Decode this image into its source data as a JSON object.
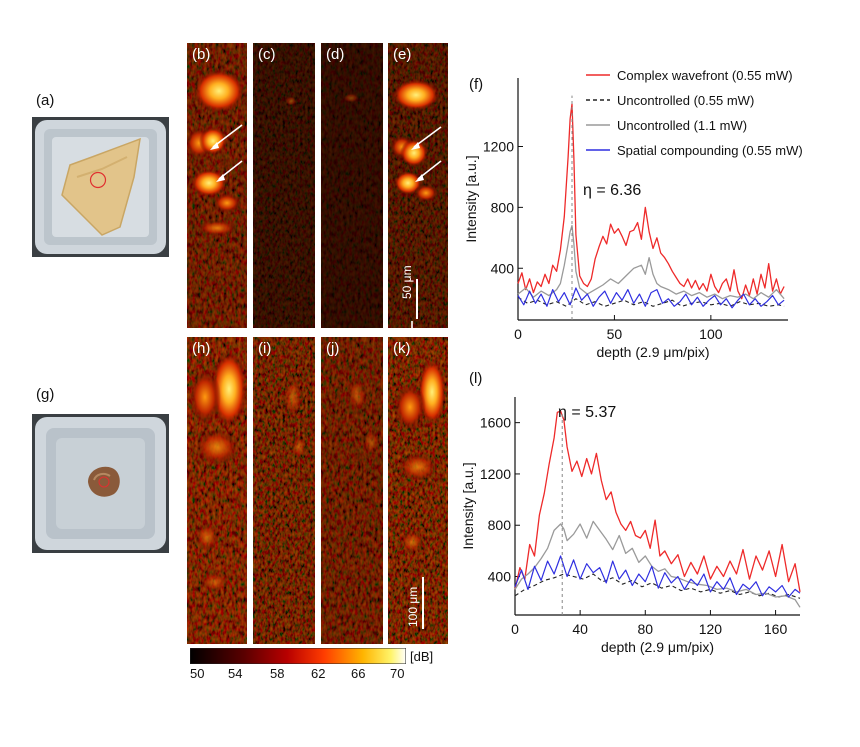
{
  "panel_labels": {
    "a": "(a)",
    "b": "(b)",
    "c": "(c)",
    "d": "(d)",
    "e": "(e)",
    "f": "(f)",
    "g": "(g)",
    "h": "(h)",
    "i": "(i)",
    "j": "(j)",
    "k": "(k)",
    "l": "(l)"
  },
  "scalebars": {
    "top": "50 μm",
    "bottom": "100 μm"
  },
  "colorbar": {
    "ticks": [
      "50",
      "54",
      "58",
      "62",
      "66",
      "70"
    ],
    "unit": "[dB]"
  },
  "colors": {
    "complex": "#ee2a2a",
    "uncontrolled_low": "#222222",
    "uncontrolled_high": "#9a9a9a",
    "compounding": "#2f2fe0"
  },
  "chart_data": [
    {
      "id": "f",
      "type": "line",
      "xlabel": "depth (2.9 μm/pix)",
      "ylabel": "Intensity [a.u.]",
      "xlim": [
        0,
        140
      ],
      "ylim": [
        60,
        1650
      ],
      "xticks": [
        "0",
        "50",
        "100"
      ],
      "xtick_values": [
        0,
        50,
        100
      ],
      "yticks": [
        "400",
        "800",
        "1200"
      ],
      "ytick_values": [
        400,
        800,
        1200
      ],
      "annotation": "η = 6.36",
      "marker_x": 28,
      "legend": [
        "Complex wavefront (0.55 mW)",
        "Uncontrolled (0.55 mW)",
        "Uncontrolled (1.1 mW)",
        "Spatial compounding (0.55 mW)"
      ],
      "series": [
        {
          "name": "Complex wavefront (0.55 mW)",
          "style": "red",
          "x": [
            0,
            2,
            4,
            6,
            8,
            10,
            12,
            14,
            16,
            18,
            20,
            22,
            24,
            26,
            27,
            28,
            29,
            30,
            32,
            34,
            36,
            38,
            40,
            42,
            44,
            46,
            48,
            50,
            52,
            54,
            56,
            58,
            60,
            62,
            64,
            66,
            68,
            70,
            72,
            74,
            76,
            78,
            80,
            82,
            84,
            86,
            88,
            90,
            92,
            94,
            96,
            98,
            100,
            102,
            104,
            106,
            108,
            110,
            112,
            114,
            116,
            118,
            120,
            122,
            124,
            126,
            128,
            130,
            132,
            134,
            136,
            138
          ],
          "y": [
            300,
            370,
            260,
            330,
            240,
            310,
            280,
            360,
            300,
            420,
            380,
            520,
            740,
            1130,
            1380,
            1480,
            1120,
            620,
            350,
            300,
            280,
            330,
            460,
            540,
            610,
            560,
            690,
            630,
            660,
            610,
            550,
            640,
            650,
            700,
            590,
            800,
            640,
            530,
            600,
            500,
            470,
            430,
            380,
            340,
            300,
            280,
            330,
            270,
            320,
            260,
            300,
            250,
            360,
            280,
            240,
            300,
            330,
            250,
            390,
            250,
            200,
            290,
            220,
            330,
            230,
            360,
            270,
            430,
            250,
            330,
            230,
            280
          ]
        },
        {
          "name": "Uncontrolled (0.55 mW)",
          "style": "black-dashed",
          "x": [
            0,
            5,
            10,
            15,
            20,
            25,
            30,
            35,
            40,
            45,
            50,
            55,
            60,
            65,
            70,
            75,
            80,
            85,
            90,
            95,
            100,
            105,
            110,
            115,
            120,
            125,
            130,
            135,
            138
          ],
          "y": [
            210,
            170,
            190,
            160,
            180,
            150,
            200,
            160,
            180,
            150,
            170,
            190,
            160,
            180,
            150,
            170,
            190,
            150,
            170,
            180,
            160,
            170,
            150,
            180,
            160,
            170,
            150,
            160,
            150
          ]
        },
        {
          "name": "Uncontrolled (1.1 mW)",
          "style": "gray",
          "x": [
            0,
            4,
            8,
            12,
            16,
            20,
            22,
            24,
            26,
            27,
            28,
            29,
            30,
            32,
            36,
            40,
            44,
            48,
            52,
            56,
            60,
            64,
            66,
            68,
            70,
            72,
            74,
            78,
            82,
            86,
            90,
            94,
            98,
            102,
            106,
            110,
            114,
            118,
            122,
            126,
            130,
            134,
            138
          ],
          "y": [
            230,
            270,
            210,
            250,
            220,
            260,
            300,
            420,
            560,
            640,
            680,
            560,
            380,
            270,
            230,
            260,
            290,
            330,
            300,
            350,
            400,
            420,
            360,
            470,
            360,
            300,
            280,
            260,
            230,
            250,
            220,
            240,
            210,
            230,
            200,
            220,
            210,
            230,
            200,
            240,
            210,
            260,
            200
          ]
        },
        {
          "name": "Spatial compounding (0.55 mW)",
          "style": "blue",
          "x": [
            0,
            3,
            6,
            9,
            12,
            15,
            18,
            21,
            24,
            27,
            30,
            33,
            36,
            39,
            42,
            45,
            48,
            51,
            54,
            57,
            60,
            63,
            66,
            69,
            72,
            75,
            78,
            81,
            84,
            87,
            90,
            93,
            96,
            99,
            102,
            105,
            108,
            111,
            114,
            117,
            120,
            123,
            126,
            129,
            132,
            135,
            138
          ],
          "y": [
            220,
            160,
            250,
            170,
            230,
            150,
            260,
            180,
            240,
            160,
            270,
            190,
            230,
            150,
            210,
            250,
            170,
            240,
            190,
            260,
            170,
            230,
            150,
            240,
            260,
            170,
            200,
            150,
            180,
            230,
            160,
            210,
            150,
            190,
            220,
            160,
            200,
            140,
            190,
            230,
            160,
            200,
            150,
            180,
            220,
            160,
            190
          ]
        }
      ]
    },
    {
      "id": "l",
      "type": "line",
      "xlabel": "depth (2.9 μm/pix)",
      "ylabel": "Intensity [a.u.]",
      "xlim": [
        0,
        175
      ],
      "ylim": [
        100,
        1800
      ],
      "xticks": [
        "0",
        "40",
        "80",
        "120",
        "160"
      ],
      "xtick_values": [
        0,
        40,
        80,
        120,
        160
      ],
      "yticks": [
        "400",
        "800",
        "1200",
        "1600"
      ],
      "ytick_values": [
        400,
        800,
        1200,
        1600
      ],
      "annotation": "η = 5.37",
      "marker_x": 29,
      "series": [
        {
          "name": "Complex wavefront (0.55 mW)",
          "style": "red",
          "x": [
            0,
            3,
            6,
            9,
            12,
            15,
            18,
            21,
            24,
            26,
            28,
            30,
            32,
            35,
            38,
            41,
            44,
            47,
            50,
            53,
            56,
            59,
            62,
            65,
            68,
            71,
            74,
            77,
            80,
            83,
            86,
            89,
            92,
            96,
            100,
            104,
            108,
            112,
            116,
            120,
            124,
            128,
            132,
            136,
            140,
            144,
            148,
            152,
            156,
            160,
            164,
            168,
            172,
            175
          ],
          "y": [
            300,
            470,
            380,
            650,
            560,
            880,
            1050,
            1280,
            1480,
            1680,
            1690,
            1620,
            1410,
            1220,
            1300,
            1180,
            1320,
            1200,
            1360,
            1150,
            1000,
            1060,
            900,
            810,
            760,
            830,
            720,
            700,
            760,
            620,
            840,
            560,
            600,
            500,
            570,
            400,
            510,
            420,
            560,
            380,
            480,
            400,
            520,
            420,
            610,
            380,
            560,
            450,
            600,
            400,
            650,
            360,
            500,
            280
          ]
        },
        {
          "name": "Uncontrolled (0.55 mW)",
          "style": "black-dashed",
          "x": [
            0,
            6,
            12,
            18,
            24,
            30,
            36,
            42,
            48,
            54,
            60,
            66,
            72,
            78,
            84,
            90,
            96,
            102,
            108,
            114,
            120,
            126,
            132,
            138,
            144,
            150,
            156,
            162,
            168,
            175
          ],
          "y": [
            250,
            300,
            330,
            370,
            390,
            420,
            400,
            380,
            420,
            360,
            390,
            340,
            370,
            320,
            350,
            310,
            330,
            290,
            310,
            280,
            300,
            270,
            290,
            260,
            280,
            250,
            270,
            240,
            260,
            230
          ]
        },
        {
          "name": "Uncontrolled (1.1 mW)",
          "style": "gray",
          "x": [
            0,
            4,
            8,
            12,
            16,
            20,
            24,
            28,
            30,
            32,
            36,
            40,
            44,
            48,
            52,
            56,
            60,
            64,
            68,
            72,
            76,
            80,
            84,
            88,
            92,
            96,
            100,
            106,
            112,
            118,
            124,
            130,
            136,
            142,
            148,
            154,
            160,
            166,
            172,
            175
          ],
          "y": [
            300,
            380,
            420,
            470,
            540,
            620,
            760,
            810,
            770,
            680,
            730,
            810,
            700,
            830,
            760,
            690,
            610,
            720,
            580,
            620,
            510,
            560,
            480,
            440,
            460,
            400,
            390,
            360,
            340,
            330,
            300,
            310,
            280,
            300,
            260,
            270,
            240,
            250,
            220,
            160
          ]
        },
        {
          "name": "Spatial compounding (0.55 mW)",
          "style": "blue",
          "x": [
            0,
            4,
            8,
            12,
            16,
            20,
            24,
            28,
            32,
            36,
            40,
            44,
            48,
            52,
            56,
            60,
            64,
            68,
            72,
            76,
            80,
            84,
            88,
            92,
            96,
            100,
            104,
            108,
            112,
            116,
            120,
            124,
            128,
            132,
            136,
            140,
            144,
            148,
            152,
            156,
            160,
            164,
            168,
            172,
            175
          ],
          "y": [
            320,
            450,
            300,
            480,
            370,
            520,
            420,
            560,
            400,
            530,
            380,
            500,
            430,
            470,
            350,
            520,
            380,
            450,
            330,
            420,
            360,
            480,
            310,
            430,
            350,
            400,
            300,
            380,
            330,
            420,
            280,
            360,
            300,
            390,
            260,
            340,
            300,
            360,
            250,
            320,
            280,
            330,
            240,
            300,
            270
          ]
        }
      ]
    }
  ]
}
